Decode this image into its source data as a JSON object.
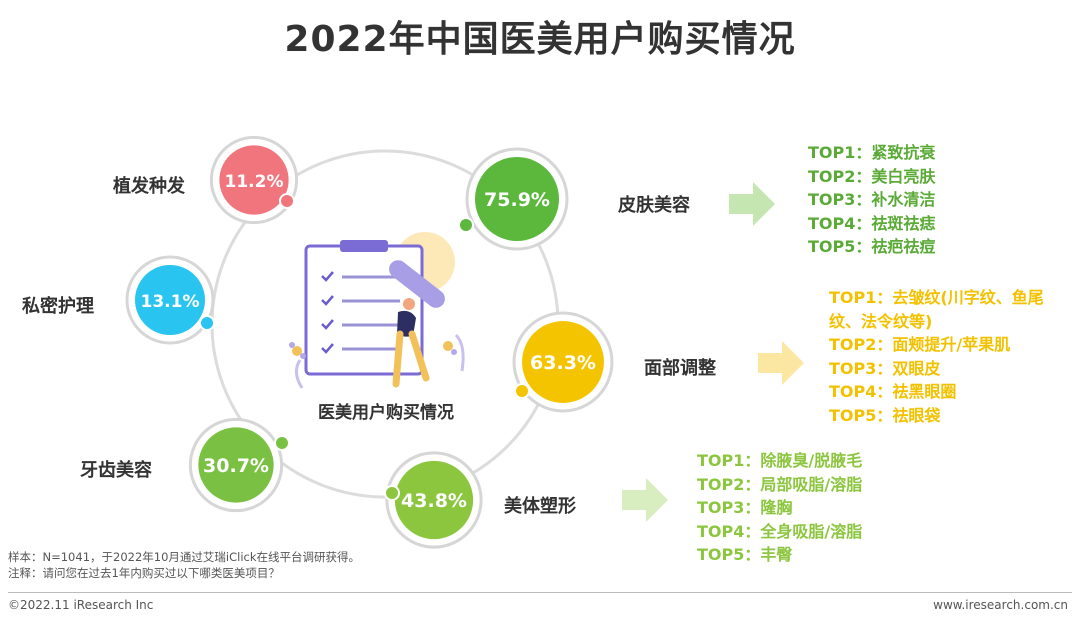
{
  "title": "2022年中国医美用户购买情况",
  "center_label": "医美用户购买情况",
  "chart_data": {
    "type": "bubble",
    "unit": "%",
    "categories": [
      {
        "name": "皮肤美容",
        "value": 75.9,
        "value_label": "75.9%",
        "color": "#5cb83c",
        "top_items": [
          "TOP1：紧致抗衰",
          "TOP2：美白亮肤",
          "TOP3：补水清洁",
          "TOP4：祛斑祛痣",
          "TOP5：祛疤祛痘"
        ]
      },
      {
        "name": "面部调整",
        "value": 63.3,
        "value_label": "63.3%",
        "color": "#f5c400",
        "top_items": [
          "TOP1：去皱纹(川字纹、鱼尾纹、法令纹等)",
          "TOP2：面颊提升/苹果肌",
          "TOP3：双眼皮",
          "TOP4：祛黑眼圈",
          "TOP5：祛眼袋"
        ]
      },
      {
        "name": "美体塑形",
        "value": 43.8,
        "value_label": "43.8%",
        "color": "#8cc63f",
        "top_items": [
          "TOP1：除腋臭/脱腋毛",
          "TOP2：局部吸脂/溶脂",
          "TOP3：隆胸",
          "TOP4：全身吸脂/溶脂",
          "TOP5：丰臀"
        ]
      },
      {
        "name": "牙齿美容",
        "value": 30.7,
        "value_label": "30.7%",
        "color": "#7ac143"
      },
      {
        "name": "私密护理",
        "value": 13.1,
        "value_label": "13.1%",
        "color": "#29c4f0"
      },
      {
        "name": "植发种发",
        "value": 11.2,
        "value_label": "11.2%",
        "color": "#f0757d"
      }
    ]
  },
  "notes": {
    "sample": "样本：N=1041，于2022年10月通过艾瑞iClick在线平台调研获得。",
    "remark": "注释：请问您在过去1年内购买过以下哪类医美项目？"
  },
  "footer": {
    "copyright": "©2022.11 iResearch Inc",
    "url": "www.iresearch.com.cn"
  }
}
